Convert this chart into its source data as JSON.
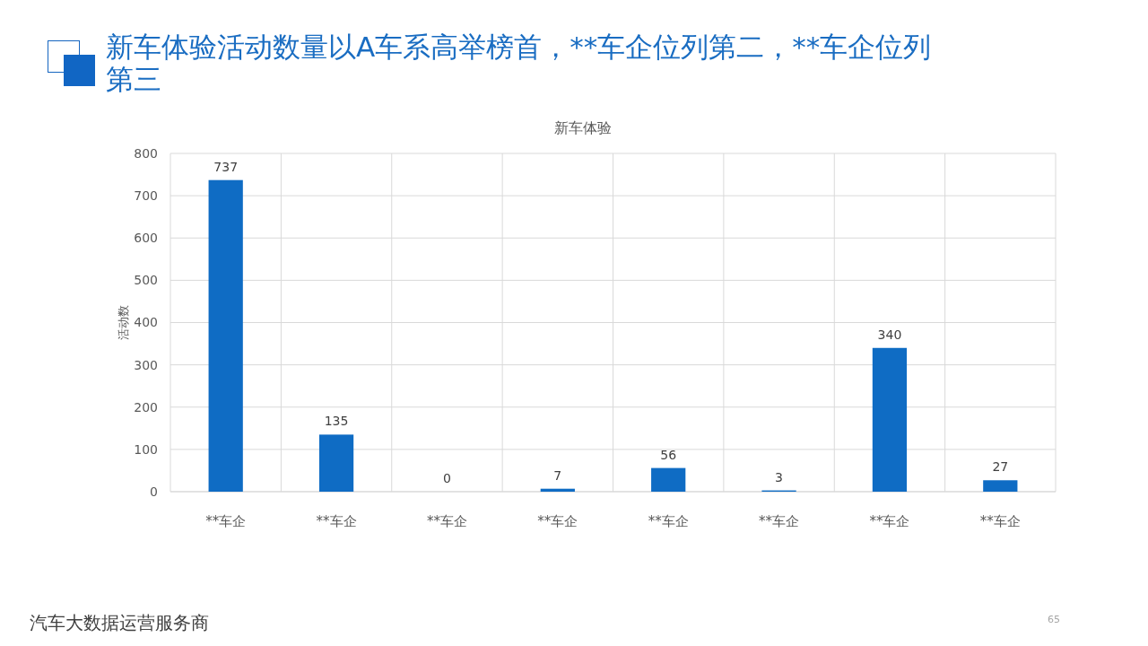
{
  "chart_data": {
    "type": "bar",
    "title": "新车体验活动数量以A车系高举榜首，**车企位列第二，**车企位列第三",
    "subtitle": "新车体验",
    "ylabel": "活动数",
    "categories": [
      "**车企",
      "**车企",
      "**车企",
      "**车企",
      "**车企",
      "**车企",
      "**车企",
      "**车企"
    ],
    "values": [
      737,
      135,
      0,
      7,
      56,
      3,
      340,
      27
    ],
    "color": "#0f6cc4",
    "ylim": [
      0,
      800
    ],
    "yticks": [
      0,
      100,
      200,
      300,
      400,
      500,
      600,
      700,
      800
    ],
    "grid": true,
    "data_labels": true,
    "annotations": [
      "汽车大数据运营服务商",
      "65"
    ]
  }
}
